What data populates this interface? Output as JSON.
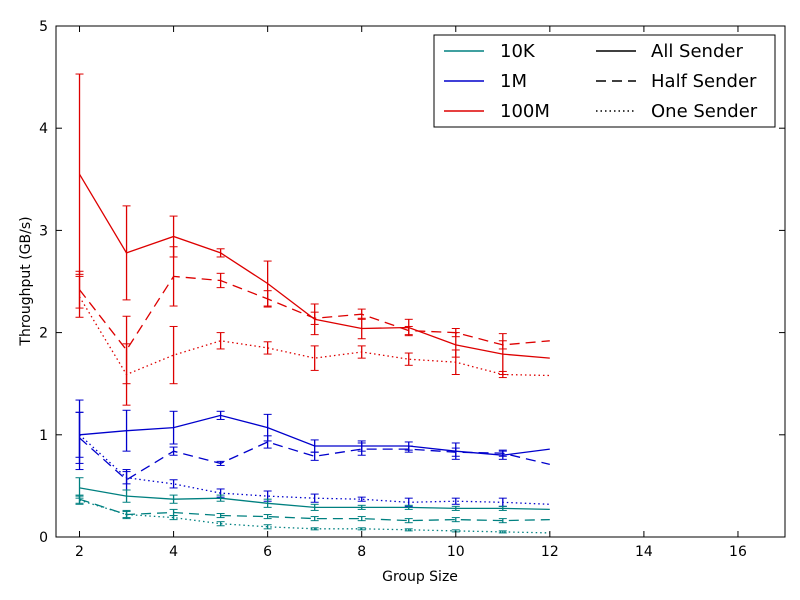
{
  "chart_data": {
    "type": "line",
    "title": "",
    "xlabel": "Group Size",
    "ylabel": "Throughput (GB/s)",
    "xlim": [
      1.5,
      17
    ],
    "ylim": [
      0,
      5
    ],
    "xticks": [
      2,
      4,
      6,
      8,
      10,
      12,
      14,
      16
    ],
    "yticks": [
      0,
      1,
      2,
      3,
      4,
      5
    ],
    "grid": false,
    "legend_placement": "top-right",
    "legend": {
      "sizes": [
        {
          "name": "10K",
          "color": "#008080"
        },
        {
          "name": "1M",
          "color": "#0000cc"
        },
        {
          "name": "100M",
          "color": "#dd0000"
        }
      ],
      "senders": [
        {
          "name": "All Sender",
          "style": "solid"
        },
        {
          "name": "Half Sender",
          "style": "dashed"
        },
        {
          "name": "One Sender",
          "style": "dotted"
        }
      ]
    },
    "x": [
      2,
      3,
      4,
      5,
      6,
      7,
      8,
      9,
      10,
      11,
      12
    ],
    "series": [
      {
        "size": "100M",
        "sender": "All Sender",
        "color": "#dd0000",
        "style": "solid",
        "values": [
          3.55,
          2.78,
          2.94,
          2.78,
          2.48,
          2.13,
          2.04,
          2.05,
          1.88,
          1.79,
          1.75
        ],
        "errors": [
          0.98,
          0.46,
          0.2,
          0.04,
          0.22,
          0.15,
          0.1,
          0.08,
          0.12,
          0.2,
          0.0
        ]
      },
      {
        "size": "100M",
        "sender": "Half Sender",
        "color": "#dd0000",
        "style": "dashed",
        "values": [
          2.42,
          1.83,
          2.55,
          2.51,
          2.33,
          2.14,
          2.18,
          2.02,
          2.0,
          1.88,
          1.92
        ],
        "errors": [
          0.18,
          0.33,
          0.29,
          0.07,
          0.08,
          0.06,
          0.05,
          0.04,
          0.04,
          0.04,
          0.0
        ]
      },
      {
        "size": "100M",
        "sender": "One Sender",
        "color": "#dd0000",
        "style": "dotted",
        "values": [
          2.35,
          1.59,
          1.78,
          1.92,
          1.85,
          1.75,
          1.81,
          1.74,
          1.71,
          1.59,
          1.58
        ],
        "errors": [
          0.2,
          0.3,
          0.28,
          0.08,
          0.06,
          0.12,
          0.06,
          0.06,
          0.12,
          0.03,
          0.0
        ]
      },
      {
        "size": "1M",
        "sender": "All Sender",
        "color": "#0000cc",
        "style": "solid",
        "values": [
          1.0,
          1.04,
          1.07,
          1.19,
          1.07,
          0.89,
          0.89,
          0.89,
          0.84,
          0.8,
          0.86
        ],
        "errors": [
          0.34,
          0.2,
          0.16,
          0.04,
          0.13,
          0.06,
          0.05,
          0.04,
          0.08,
          0.04,
          0.0
        ]
      },
      {
        "size": "1M",
        "sender": "Half Sender",
        "color": "#0000cc",
        "style": "dashed",
        "values": [
          0.97,
          0.56,
          0.84,
          0.72,
          0.93,
          0.79,
          0.86,
          0.86,
          0.83,
          0.82,
          0.71
        ],
        "errors": [
          0.25,
          0.1,
          0.04,
          0.02,
          0.06,
          0.04,
          0.06,
          0.03,
          0.04,
          0.03,
          0.0
        ]
      },
      {
        "size": "1M",
        "sender": "One Sender",
        "color": "#0000cc",
        "style": "dotted",
        "values": [
          1.0,
          0.58,
          0.52,
          0.43,
          0.4,
          0.38,
          0.37,
          0.34,
          0.35,
          0.34,
          0.32
        ],
        "errors": [
          0.22,
          0.06,
          0.04,
          0.04,
          0.05,
          0.04,
          0.02,
          0.04,
          0.03,
          0.04,
          0.0
        ]
      },
      {
        "size": "10K",
        "sender": "All Sender",
        "color": "#008080",
        "style": "solid",
        "values": [
          0.48,
          0.4,
          0.37,
          0.38,
          0.33,
          0.29,
          0.29,
          0.29,
          0.28,
          0.28,
          0.27
        ],
        "errors": [
          0.1,
          0.06,
          0.04,
          0.03,
          0.04,
          0.03,
          0.02,
          0.02,
          0.02,
          0.02,
          0.0
        ]
      },
      {
        "size": "10K",
        "sender": "Half Sender",
        "color": "#008080",
        "style": "dashed",
        "values": [
          0.37,
          0.22,
          0.24,
          0.21,
          0.2,
          0.18,
          0.18,
          0.16,
          0.17,
          0.16,
          0.17
        ],
        "errors": [
          0.04,
          0.04,
          0.03,
          0.02,
          0.02,
          0.02,
          0.02,
          0.02,
          0.02,
          0.02,
          0.0
        ]
      },
      {
        "size": "10K",
        "sender": "One Sender",
        "color": "#008080",
        "style": "dotted",
        "values": [
          0.36,
          0.22,
          0.19,
          0.13,
          0.1,
          0.08,
          0.08,
          0.07,
          0.06,
          0.05,
          0.04
        ],
        "errors": [
          0.04,
          0.03,
          0.02,
          0.02,
          0.02,
          0.01,
          0.01,
          0.01,
          0.01,
          0.01,
          0.0
        ]
      }
    ]
  }
}
